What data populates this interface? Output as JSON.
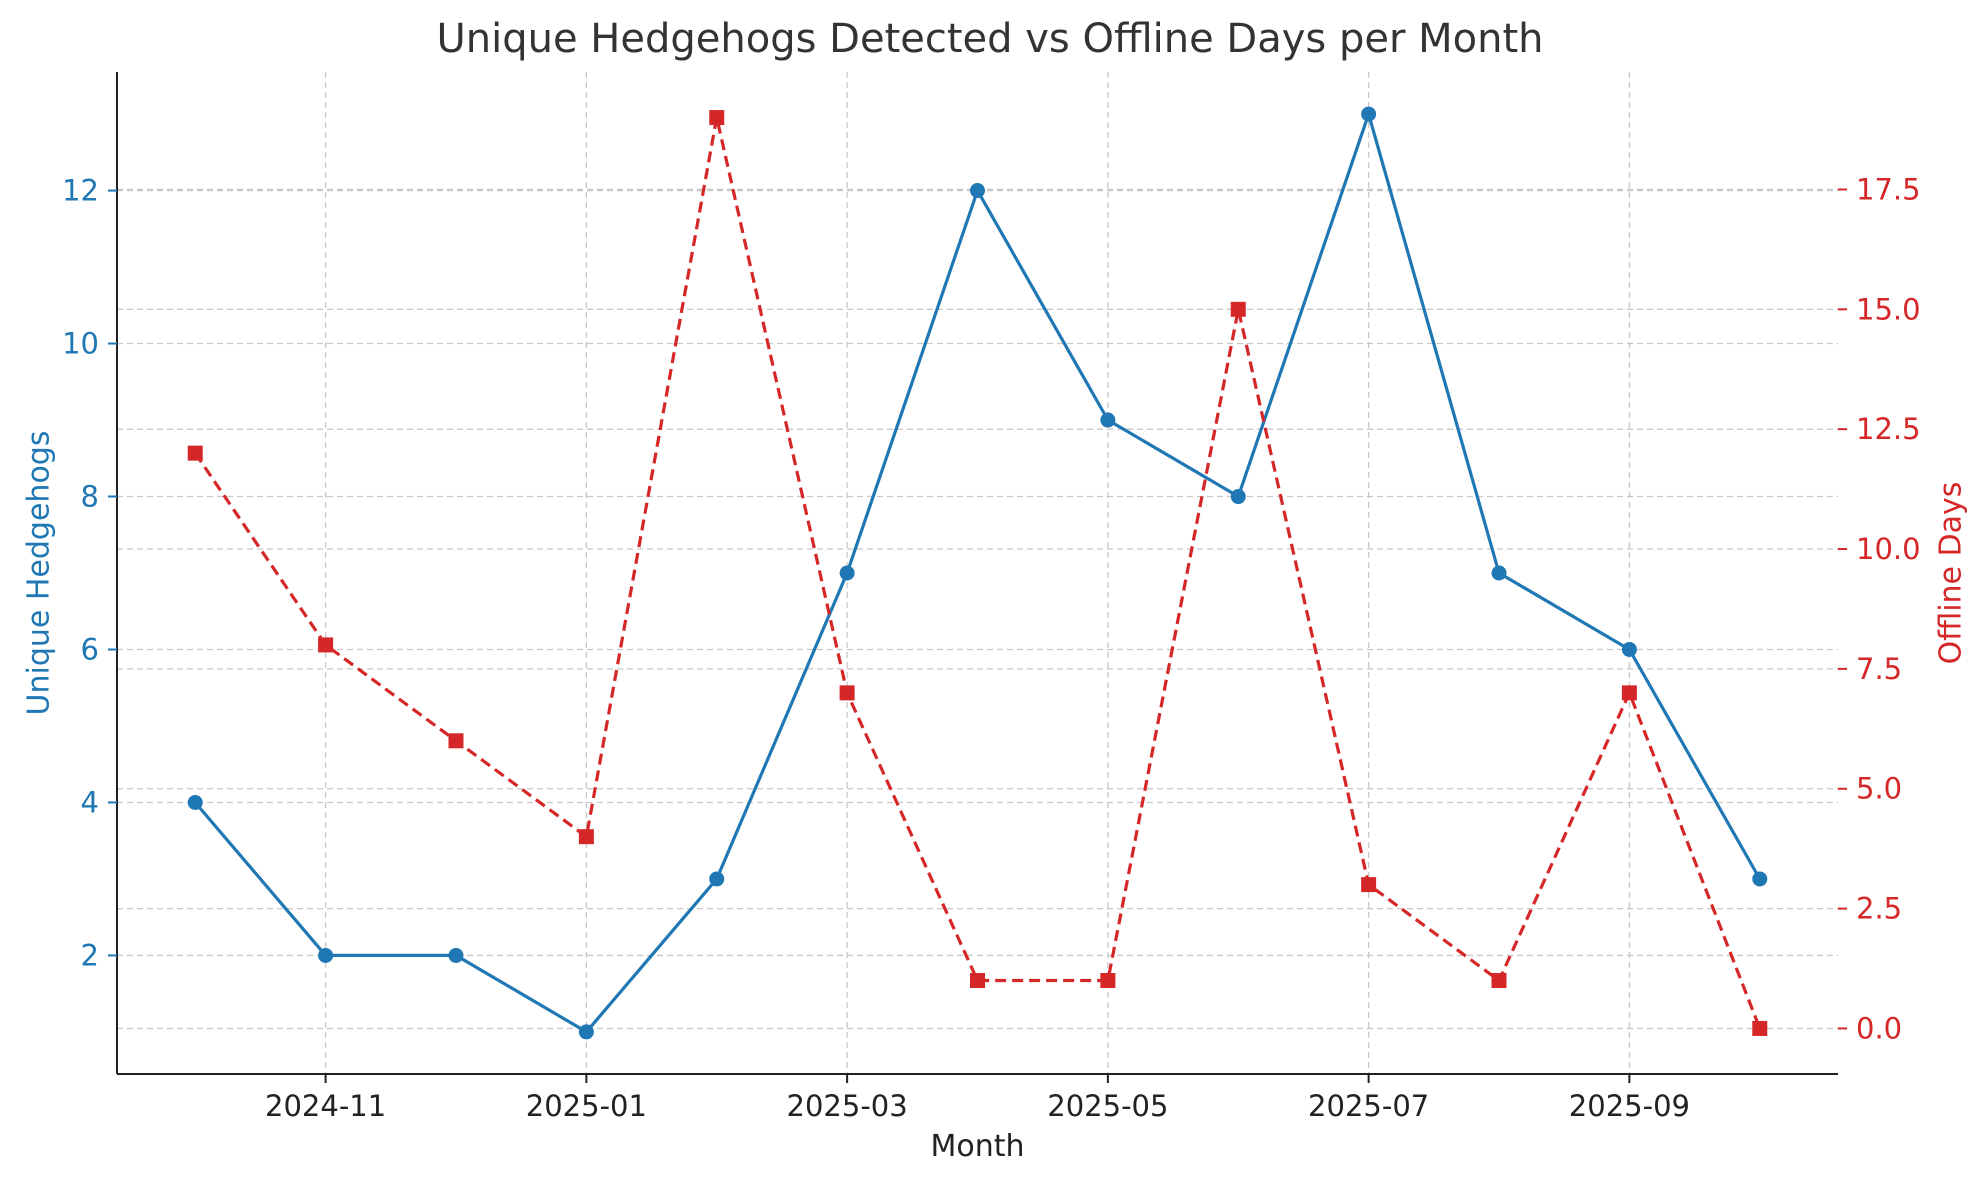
{
  "chart_data": {
    "type": "line",
    "title": "Unique Hedgehogs Detected vs Offline Days per Month",
    "xlabel": "Month",
    "x": [
      "2024-10",
      "2024-11",
      "2024-12",
      "2025-01",
      "2025-02",
      "2025-03",
      "2025-04",
      "2025-05",
      "2025-06",
      "2025-07",
      "2025-08",
      "2025-09",
      "2025-10"
    ],
    "x_ticks": [
      "2024-11",
      "2025-01",
      "2025-03",
      "2025-05",
      "2025-07",
      "2025-09"
    ],
    "grid": true,
    "series": [
      {
        "axis": "left",
        "ylabel": "Unique Hedgehogs",
        "color": "#1f77b4",
        "marker": "circle",
        "linestyle": "solid",
        "values": [
          4,
          2,
          2,
          1,
          3,
          7,
          12,
          9,
          8,
          13,
          7,
          6,
          3
        ]
      },
      {
        "axis": "right",
        "ylabel": "Offline Days",
        "color": "#d62728",
        "marker": "square",
        "linestyle": "dashed",
        "values": [
          12,
          8,
          6,
          4,
          19,
          7,
          1,
          1,
          15,
          3,
          1,
          7,
          0
        ]
      }
    ],
    "y_left": {
      "label": "Unique Hedgehogs",
      "ylim": [
        0.45,
        13.55
      ],
      "ticks": [
        2,
        4,
        6,
        8,
        10,
        12
      ],
      "tick_labels": [
        "2",
        "4",
        "6",
        "8",
        "10",
        "12"
      ],
      "color": "#1f77b4"
    },
    "y_right": {
      "label": "Offline Days",
      "ylim": [
        -0.95,
        19.95
      ],
      "ticks": [
        0,
        2.5,
        5,
        7.5,
        10,
        12.5,
        15,
        17.5
      ],
      "tick_labels": [
        "0.0",
        "2.5",
        "5.0",
        "7.5",
        "10.0",
        "12.5",
        "15.0",
        "17.5"
      ],
      "color": "#d62728"
    }
  }
}
